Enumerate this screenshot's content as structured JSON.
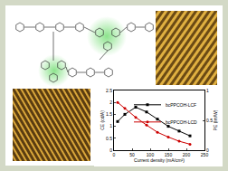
{
  "chart_data": {
    "type": "line",
    "x": [
      10,
      30,
      60,
      90,
      120,
      150,
      180,
      210
    ],
    "xlabel": "Current density (mA/cm²)",
    "ylabel": "CE (cd/A)",
    "y2label": "PE (lm/W)",
    "xlim": [
      0,
      250
    ],
    "xticks": [
      0,
      50,
      100,
      150,
      200,
      250
    ],
    "ylim": [
      0,
      2.5
    ],
    "yticks": [
      0,
      0.5,
      1,
      1.5,
      2,
      2.5
    ],
    "y2lim": [
      0,
      1
    ],
    "y2ticks": [
      0,
      0.5,
      1
    ],
    "series": [
      {
        "name": "bcPPCOH-LCF",
        "color": "#000000",
        "marker": "square",
        "values": [
          1.2,
          1.5,
          1.8,
          1.6,
          1.3,
          1.0,
          0.8,
          0.6
        ]
      },
      {
        "name": "bcPPCOH-LCD",
        "color": "#cc0000",
        "marker": "circle",
        "axis": "y2",
        "values": [
          0.8,
          0.7,
          0.55,
          0.42,
          0.3,
          0.22,
          0.15,
          0.1
        ]
      }
    ],
    "legend": "top right",
    "grid": false
  }
}
